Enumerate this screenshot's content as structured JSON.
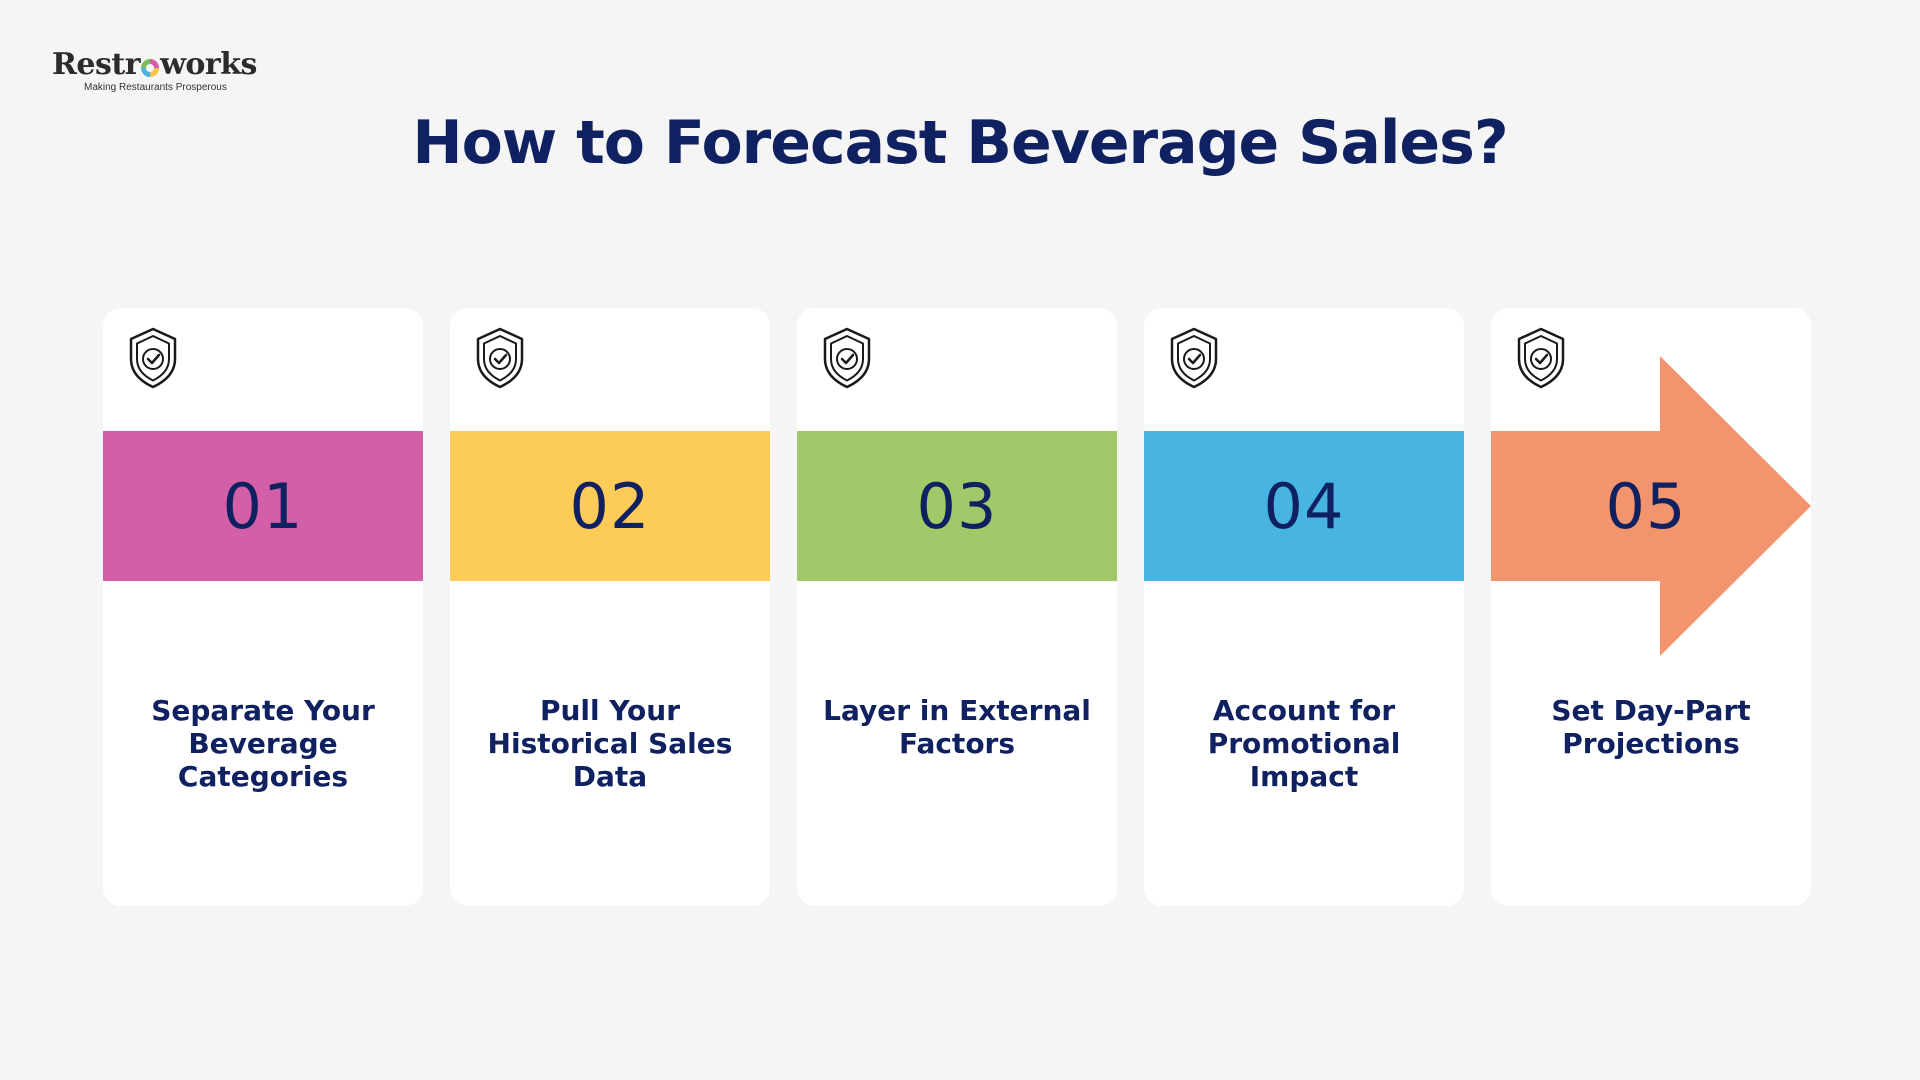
{
  "logo": {
    "name_part1": "Restr",
    "name_part2": "works",
    "tagline": "Making Restaurants Prosperous"
  },
  "title": "How to Forecast Beverage Sales?",
  "steps": [
    {
      "number": "01",
      "label": "Separate Your\nBeverage\nCategories",
      "color": "#d45fa9",
      "icon": "shield-check-icon"
    },
    {
      "number": "02",
      "label": "Pull Your\nHistorical Sales\nData",
      "color": "#fdcb58",
      "icon": "shield-check-icon"
    },
    {
      "number": "03",
      "label": "Layer in External\nFactors",
      "color": "#a1c96a",
      "icon": "shield-check-icon"
    },
    {
      "number": "04",
      "label": "Account for\nPromotional\nImpact",
      "color": "#47b4e2",
      "icon": "shield-check-icon"
    },
    {
      "number": "05",
      "label": "Set Day-Part\nProjections",
      "color": "#f2956f",
      "icon": "shield-check-icon"
    }
  ]
}
